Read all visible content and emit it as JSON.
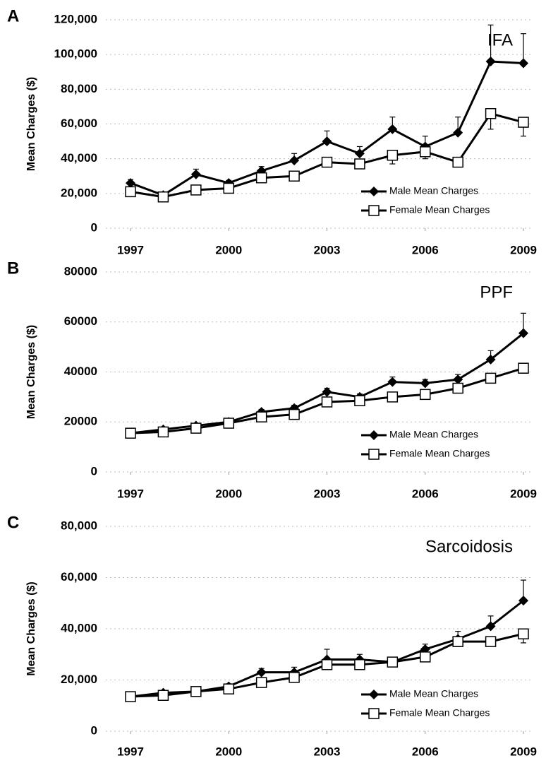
{
  "chart_data": [
    {
      "type": "line",
      "label": "A",
      "title": "IFA",
      "ylabel": "Mean Charges ($)",
      "x": [
        1997,
        1998,
        1999,
        2000,
        2001,
        2002,
        2003,
        2004,
        2005,
        2006,
        2007,
        2008,
        2009
      ],
      "xlim": [
        1997,
        2009
      ],
      "xticks": [
        1997,
        2000,
        2003,
        2006,
        2009
      ],
      "ylim": [
        0,
        120000
      ],
      "yticks": [
        0,
        {
          "value": 20000,
          "label": "20,000"
        },
        {
          "value": 40000,
          "label": "40,000"
        },
        {
          "value": 60000,
          "label": "60,000"
        },
        {
          "value": 80000,
          "label": "80,000"
        },
        {
          "value": 100000,
          "label": "100,000"
        },
        {
          "value": 120000,
          "label": "120,000"
        }
      ],
      "grid": true,
      "legend": "lower right",
      "series": [
        {
          "name": "Male Mean Charges",
          "color": "#000000",
          "marker": "diamond",
          "values": [
            26000,
            19000,
            31000,
            26000,
            33000,
            39000,
            50000,
            43000,
            57000,
            47000,
            55000,
            96000,
            95000
          ],
          "errors": [
            2000,
            1000,
            3000,
            1500,
            2500,
            4000,
            6000,
            4000,
            7000,
            6000,
            9000,
            21000,
            17000
          ]
        },
        {
          "name": "Female Mean Charges",
          "color": "#000000",
          "marker": "square",
          "values": [
            21000,
            18000,
            22000,
            23000,
            29000,
            30000,
            38000,
            37000,
            42000,
            44000,
            38000,
            66000,
            61000
          ],
          "errors": [
            1500,
            1000,
            1500,
            1500,
            2000,
            2000,
            2000,
            2000,
            5000,
            4000,
            2000,
            9000,
            8000
          ]
        }
      ]
    },
    {
      "type": "line",
      "label": "B",
      "title": "PPF",
      "ylabel": "Mean Charges ($)",
      "x": [
        1997,
        1998,
        1999,
        2000,
        2001,
        2002,
        2003,
        2004,
        2005,
        2006,
        2007,
        2008,
        2009
      ],
      "xlim": [
        1997,
        2009
      ],
      "xticks": [
        1997,
        2000,
        2003,
        2006,
        2009
      ],
      "ylim": [
        0,
        80000
      ],
      "yticks": [
        0,
        20000,
        40000,
        60000,
        80000
      ],
      "grid": true,
      "legend": "lower right",
      "series": [
        {
          "name": "Male Mean Charges",
          "color": "#000000",
          "marker": "diamond",
          "values": [
            15500,
            17000,
            18500,
            20000,
            24000,
            25500,
            32000,
            30000,
            36000,
            35500,
            37000,
            45000,
            55500
          ],
          "errors": [
            500,
            500,
            800,
            800,
            1000,
            1200,
            1500,
            1200,
            2000,
            1500,
            2000,
            3500,
            8000
          ]
        },
        {
          "name": "Female Mean Charges",
          "color": "#000000",
          "marker": "square",
          "values": [
            15500,
            16000,
            17500,
            19500,
            22000,
            23000,
            28000,
            28500,
            30000,
            31000,
            33500,
            37500,
            41500
          ],
          "errors": [
            500,
            500,
            500,
            500,
            800,
            800,
            1000,
            1000,
            1000,
            1000,
            1000,
            1500,
            2000
          ]
        }
      ]
    },
    {
      "type": "line",
      "label": "C",
      "title": "Sarcoidosis",
      "ylabel": "Mean Charges ($)",
      "x": [
        1997,
        1998,
        1999,
        2000,
        2001,
        2002,
        2003,
        2004,
        2005,
        2006,
        2007,
        2008,
        2009
      ],
      "xlim": [
        1997,
        2009
      ],
      "xticks": [
        1997,
        2000,
        2003,
        2006,
        2009
      ],
      "ylim": [
        0,
        80000
      ],
      "yticks": [
        0,
        {
          "value": 20000,
          "label": "20,000"
        },
        {
          "value": 40000,
          "label": "40,000"
        },
        {
          "value": 60000,
          "label": "60,000"
        },
        {
          "value": 80000,
          "label": "80,000"
        }
      ],
      "grid": true,
      "legend": "lower right",
      "series": [
        {
          "name": "Male Mean Charges",
          "color": "#000000",
          "marker": "diamond",
          "values": [
            13500,
            15000,
            15500,
            17500,
            23000,
            23000,
            28000,
            28000,
            27000,
            32000,
            36000,
            41000,
            51000
          ],
          "errors": [
            500,
            700,
            700,
            1000,
            1500,
            2000,
            4000,
            2000,
            1000,
            2000,
            3000,
            4000,
            8000
          ]
        },
        {
          "name": "Female Mean Charges",
          "color": "#000000",
          "marker": "square",
          "values": [
            13500,
            14000,
            15500,
            16500,
            19000,
            21000,
            26000,
            26000,
            27000,
            29000,
            35000,
            35000,
            38000
          ],
          "errors": [
            500,
            500,
            500,
            500,
            800,
            800,
            1000,
            1000,
            1000,
            1000,
            2000,
            1500,
            3500
          ]
        }
      ]
    }
  ]
}
